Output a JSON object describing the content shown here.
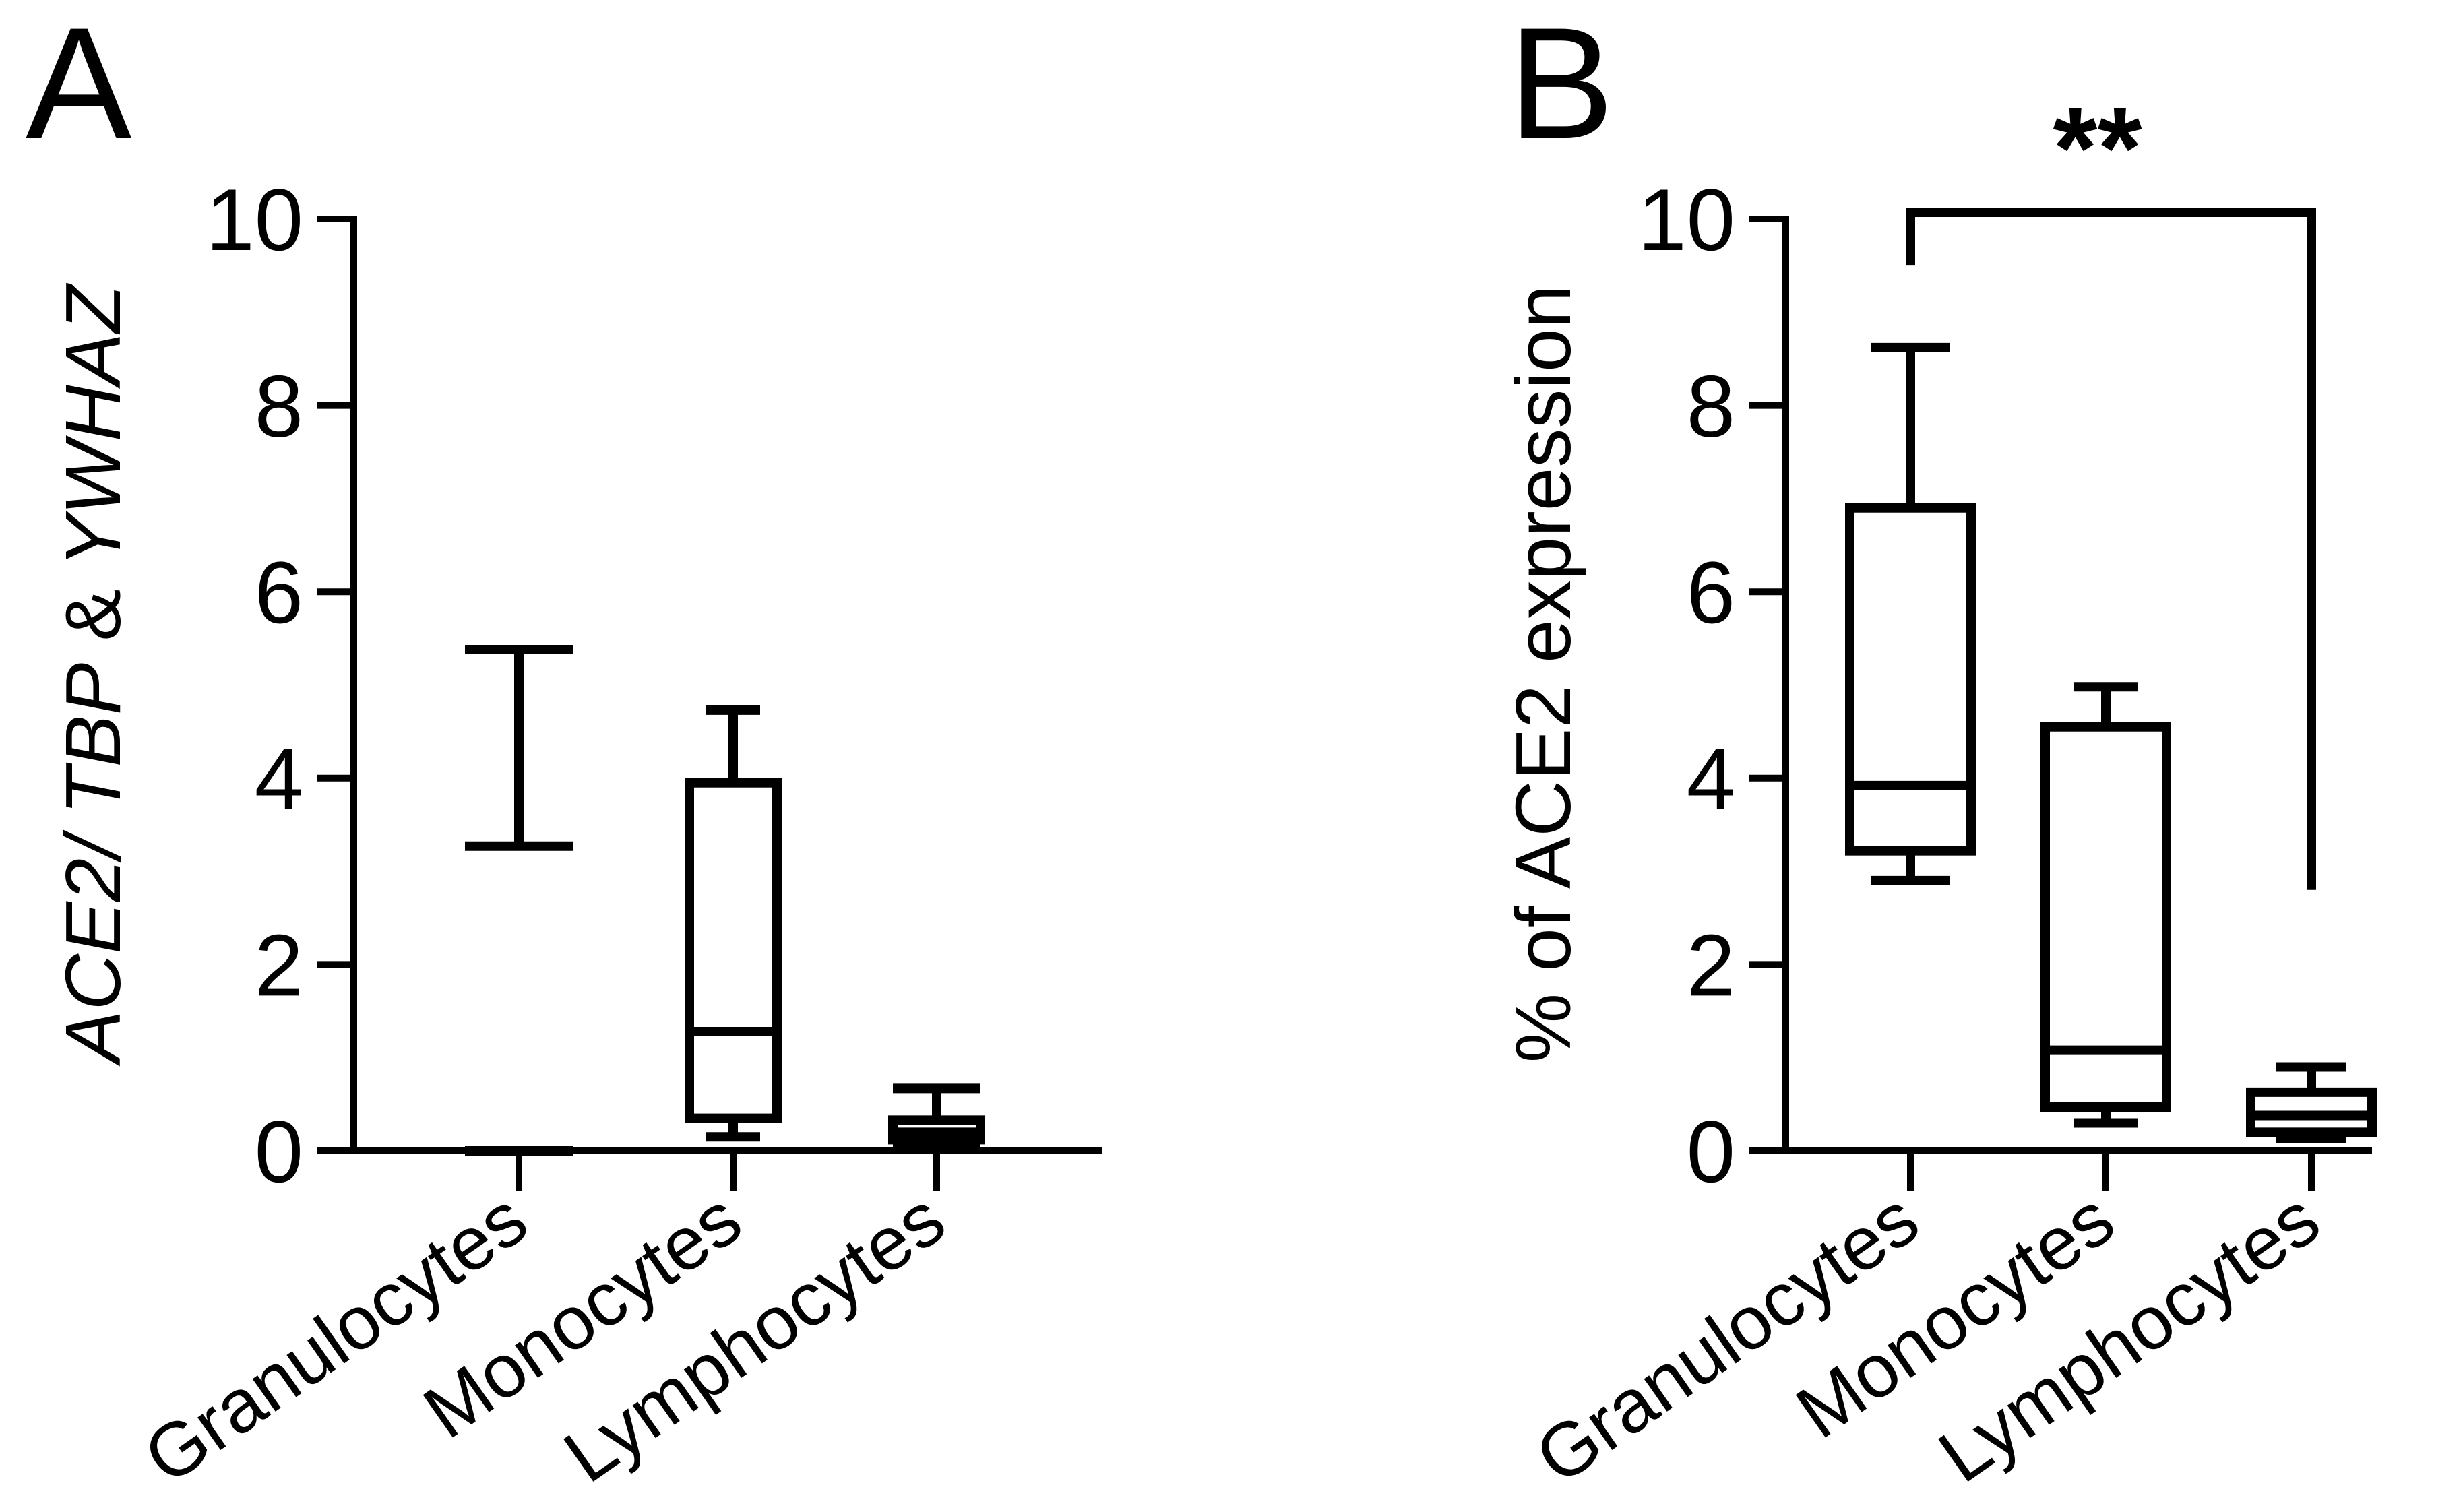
{
  "chart_data": [
    {
      "panel": "A",
      "type": "box",
      "ylabel_parts": [
        "ACE2/ ",
        "TBP",
        " & ",
        "YWHAZ"
      ],
      "ylim": [
        0,
        10
      ],
      "yticks": [
        "0",
        "2",
        "4",
        "6",
        "8",
        "10"
      ],
      "categories": [
        "Granulocytes",
        "Monocytes",
        "Lymphocytes"
      ],
      "boxes": [
        {
          "min": 0.0,
          "q1": 0.0,
          "median": 3.27,
          "q3": 3.27,
          "max": 5.38
        },
        {
          "min": 0.15,
          "q1": 0.35,
          "median": 1.28,
          "q3": 3.95,
          "max": 4.73
        },
        {
          "min": 0.08,
          "q1": 0.12,
          "median": 0.2,
          "q3": 0.33,
          "max": 0.67
        }
      ]
    },
    {
      "panel": "B",
      "type": "box",
      "ylabel": "% of ACE2 expression",
      "ylim": [
        0,
        10
      ],
      "yticks": [
        "0",
        "2",
        "4",
        "6",
        "8",
        "10"
      ],
      "categories": [
        "Granulocytes",
        "Monocytes",
        "Lymphocytes"
      ],
      "boxes": [
        {
          "min": 2.9,
          "q1": 3.22,
          "median": 3.92,
          "q3": 6.9,
          "max": 8.62
        },
        {
          "min": 0.3,
          "q1": 0.47,
          "median": 1.08,
          "q3": 4.55,
          "max": 4.98
        },
        {
          "min": 0.13,
          "q1": 0.2,
          "median": 0.38,
          "q3": 0.63,
          "max": 0.9
        }
      ],
      "significance": {
        "from": "Granulocytes",
        "to": "Lymphocytes",
        "label": "**"
      }
    }
  ]
}
